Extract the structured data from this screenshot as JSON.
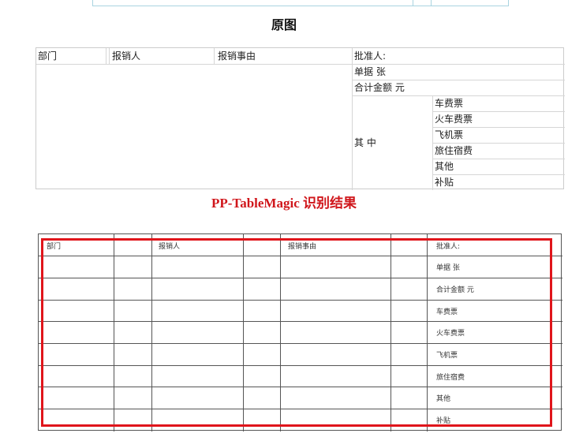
{
  "original_label": "原图",
  "result_label": "PP-TableMagic 识别结果",
  "original_table": {
    "headers": [
      "部门",
      "报销人",
      "报销事由",
      "批准人:"
    ],
    "right_rows": [
      "单据 张",
      "合计金额 元"
    ],
    "group_label": "其 中",
    "group_items": [
      "车费票",
      "火车费票",
      "飞机票",
      "旅住宿费",
      "其他",
      "补贴"
    ]
  },
  "result_table": {
    "headers": [
      "部门",
      "",
      "报销人",
      "",
      "报销事由",
      "",
      "批准人:"
    ],
    "last_column": [
      "批准人:",
      "单据 张",
      "合计金额 元",
      "车费票",
      "火车费票",
      "飞机票",
      "旅住宿费",
      "其他",
      "补贴"
    ]
  },
  "colors": {
    "highlight": "#e0151b",
    "result_title": "#d0161b"
  }
}
